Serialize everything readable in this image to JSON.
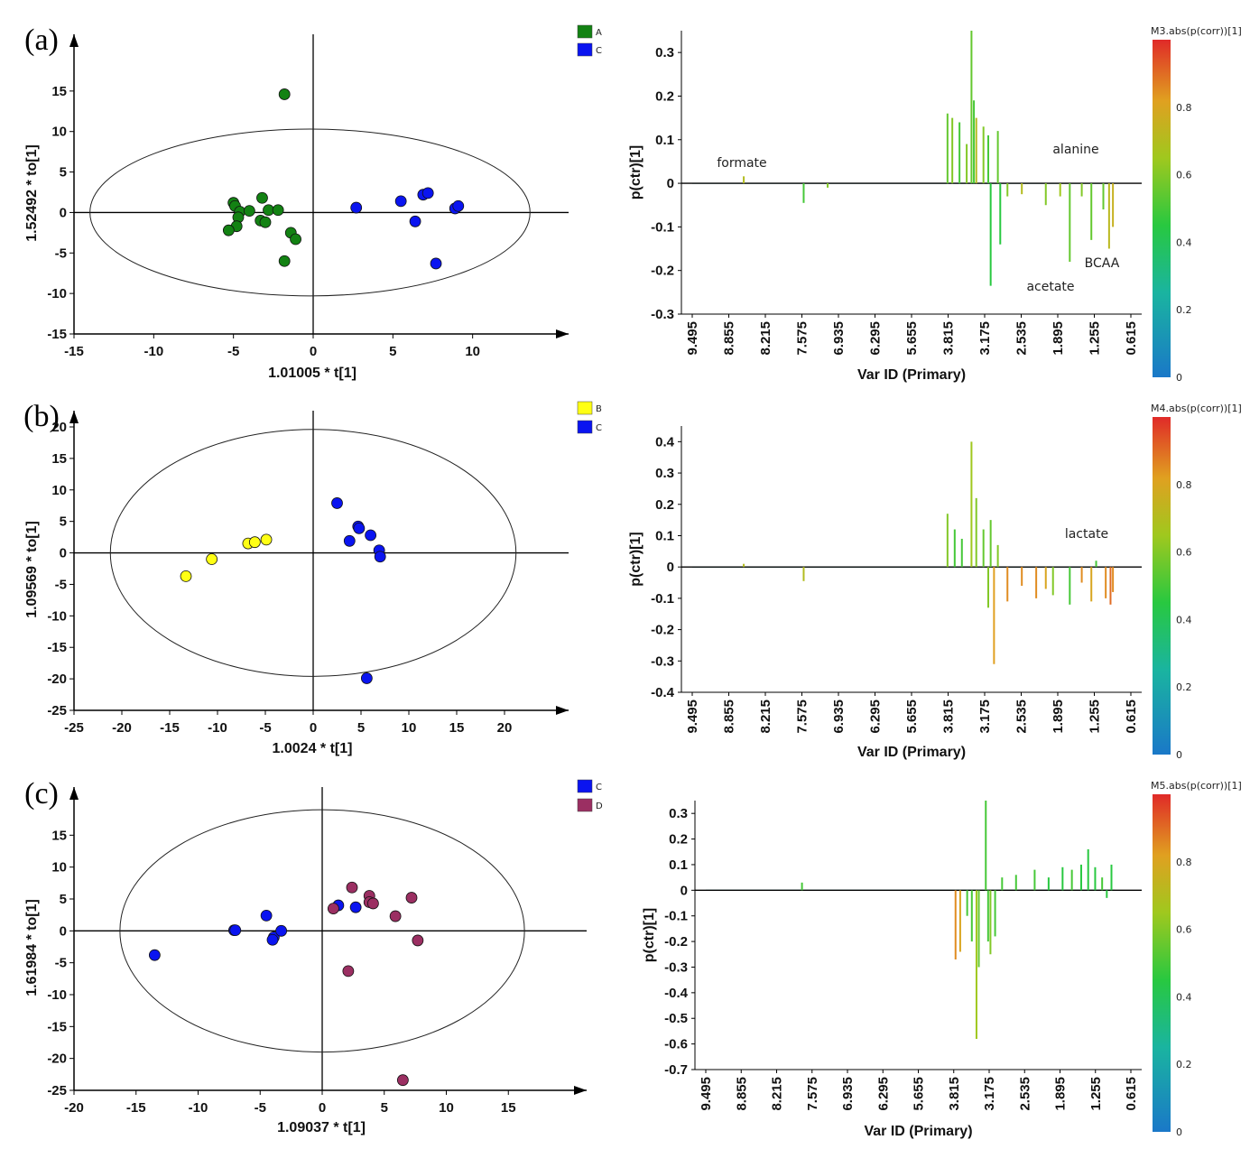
{
  "colors": {
    "A": "#138213",
    "B": "#ffff14",
    "C": "#0a14f0",
    "D": "#9b2f62",
    "axis": "#000000"
  },
  "chart_data": [
    {
      "type": "scatter",
      "panel": "(a)",
      "xlabel": "1.01005 * t[1]",
      "ylabel": "1.52492 * to[1]",
      "xlim": [
        -15,
        15
      ],
      "ylim": [
        -15,
        20
      ],
      "xticks": [
        -15,
        -10,
        -5,
        0,
        5,
        10
      ],
      "yticks": [
        -15,
        -10,
        -5,
        0,
        5,
        10,
        15
      ],
      "ellipse": {
        "cx": -0.2,
        "cy": 0,
        "rx": 13.8,
        "ry": 10.3
      },
      "legend": [
        "A",
        "C"
      ],
      "series": [
        {
          "name": "A",
          "color_key": "A",
          "points": [
            [
              -1.8,
              14.6
            ],
            [
              -5,
              1.2
            ],
            [
              -4.9,
              0.8
            ],
            [
              -4.6,
              0.1
            ],
            [
              -4.7,
              -0.6
            ],
            [
              -4.8,
              -1.7
            ],
            [
              -5.3,
              -2.2
            ],
            [
              -4,
              0.2
            ],
            [
              -3.2,
              1.8
            ],
            [
              -3.3,
              -1
            ],
            [
              -3,
              -1.2
            ],
            [
              -2.8,
              0.3
            ],
            [
              -2.2,
              0.3
            ],
            [
              -1.4,
              -2.5
            ],
            [
              -1.1,
              -3.3
            ],
            [
              -1.8,
              -6
            ]
          ]
        },
        {
          "name": "C",
          "color_key": "C",
          "points": [
            [
              2.7,
              0.6
            ],
            [
              5.5,
              1.4
            ],
            [
              6.4,
              -1.1
            ],
            [
              6.9,
              2.2
            ],
            [
              7.2,
              2.4
            ],
            [
              8.9,
              0.5
            ],
            [
              9.1,
              0.8
            ],
            [
              7.7,
              -6.3
            ]
          ]
        }
      ]
    },
    {
      "type": "line",
      "panel": "(a)",
      "xlabel": "Var ID (Primary)",
      "ylabel": "p(ctr)[1]",
      "xticks": [
        "9.495",
        "8.855",
        "8.215",
        "7.575",
        "6.935",
        "6.295",
        "5.655",
        "3.815",
        "3.175",
        "2.535",
        "1.895",
        "1.255",
        "0.615"
      ],
      "ylim": [
        -0.3,
        0.35
      ],
      "yticks": [
        -0.3,
        -0.2,
        -0.1,
        0,
        0.1,
        0.2,
        0.3
      ],
      "colorbar": {
        "title": "M3.abs(p(corr))[1]",
        "ticks": [
          0,
          0.2,
          0.4,
          0.6,
          0.8
        ]
      },
      "annotations": [
        "formate",
        "alanine",
        "acetate",
        "BCAA"
      ],
      "spikes": [
        [
          8.6,
          0.016,
          0.7
        ],
        [
          7.35,
          -0.045,
          0.5
        ],
        [
          6.85,
          -0.01,
          0.6
        ],
        [
          4.35,
          0.16,
          0.55
        ],
        [
          4.25,
          0.15,
          0.6
        ],
        [
          4.1,
          0.14,
          0.5
        ],
        [
          3.95,
          0.09,
          0.6
        ],
        [
          3.85,
          0.35,
          0.55
        ],
        [
          3.8,
          0.19,
          0.5
        ],
        [
          3.75,
          0.15,
          0.7
        ],
        [
          3.6,
          0.13,
          0.6
        ],
        [
          3.5,
          0.11,
          0.5
        ],
        [
          3.45,
          -0.235,
          0.45
        ],
        [
          3.3,
          0.12,
          0.55
        ],
        [
          3.25,
          -0.14,
          0.45
        ],
        [
          3.1,
          -0.03,
          0.6
        ],
        [
          2.8,
          -0.025,
          0.7
        ],
        [
          2.3,
          -0.05,
          0.6
        ],
        [
          2.0,
          -0.03,
          0.65
        ],
        [
          1.8,
          -0.18,
          0.55
        ],
        [
          1.55,
          -0.03,
          0.6
        ],
        [
          1.35,
          -0.13,
          0.55
        ],
        [
          1.1,
          -0.06,
          0.55
        ],
        [
          0.98,
          -0.15,
          0.72
        ],
        [
          0.9,
          -0.1,
          0.75
        ]
      ]
    },
    {
      "type": "scatter",
      "panel": "(b)",
      "xlabel": "1.0024 * t[1]",
      "ylabel": "1.09569 * to[1]",
      "xlim": [
        -25,
        25
      ],
      "ylim": [
        -25,
        20
      ],
      "xticks": [
        -25,
        -20,
        -15,
        -10,
        -5,
        0,
        5,
        10,
        15,
        20
      ],
      "yticks": [
        -25,
        -20,
        -15,
        -10,
        -5,
        0,
        5,
        10,
        15,
        20
      ],
      "ellipse": {
        "cx": 0,
        "cy": 0,
        "rx": 21.2,
        "ry": 19.6
      },
      "legend": [
        "B",
        "C"
      ],
      "series": [
        {
          "name": "B",
          "color_key": "B",
          "points": [
            [
              -13.3,
              -3.7
            ],
            [
              -10.6,
              -1
            ],
            [
              -6.8,
              1.5
            ],
            [
              -6.1,
              1.7
            ],
            [
              -4.9,
              2.1
            ]
          ]
        },
        {
          "name": "C",
          "color_key": "C",
          "points": [
            [
              2.5,
              7.9
            ],
            [
              4.7,
              4.2
            ],
            [
              4.8,
              3.9
            ],
            [
              3.8,
              1.9
            ],
            [
              6,
              2.8
            ],
            [
              6.9,
              0.4
            ],
            [
              7,
              -0.6
            ],
            [
              5.6,
              -19.9
            ]
          ]
        }
      ]
    },
    {
      "type": "line",
      "panel": "(b)",
      "xlabel": "Var ID (Primary)",
      "ylabel": "p(ctr)[1]",
      "xticks": [
        "9.495",
        "8.855",
        "8.215",
        "7.575",
        "6.935",
        "6.295",
        "5.655",
        "3.815",
        "3.175",
        "2.535",
        "1.895",
        "1.255",
        "0.615"
      ],
      "ylim": [
        -0.4,
        0.45
      ],
      "yticks": [
        -0.4,
        -0.3,
        -0.2,
        -0.1,
        0,
        0.1,
        0.2,
        0.3,
        0.4
      ],
      "colorbar": {
        "title": "M4.abs(p(corr))[1]",
        "ticks": [
          0,
          0.2,
          0.4,
          0.6,
          0.8
        ]
      },
      "annotations": [
        "lactate"
      ],
      "spikes": [
        [
          8.6,
          0.01,
          0.7
        ],
        [
          7.35,
          -0.045,
          0.7
        ],
        [
          4.35,
          0.17,
          0.6
        ],
        [
          4.2,
          0.12,
          0.5
        ],
        [
          4.05,
          0.09,
          0.5
        ],
        [
          3.85,
          0.4,
          0.65
        ],
        [
          3.75,
          0.22,
          0.6
        ],
        [
          3.6,
          0.12,
          0.55
        ],
        [
          3.5,
          -0.13,
          0.6
        ],
        [
          3.45,
          0.15,
          0.55
        ],
        [
          3.38,
          -0.31,
          0.82
        ],
        [
          3.3,
          0.07,
          0.6
        ],
        [
          3.1,
          -0.11,
          0.85
        ],
        [
          2.8,
          -0.06,
          0.85
        ],
        [
          2.5,
          -0.1,
          0.85
        ],
        [
          2.3,
          -0.07,
          0.8
        ],
        [
          2.15,
          -0.09,
          0.6
        ],
        [
          1.8,
          -0.12,
          0.5
        ],
        [
          1.55,
          -0.05,
          0.85
        ],
        [
          1.35,
          -0.11,
          0.8
        ],
        [
          1.25,
          0.02,
          0.5
        ],
        [
          1.05,
          -0.1,
          0.85
        ],
        [
          0.95,
          -0.12,
          0.9
        ],
        [
          0.9,
          -0.08,
          0.85
        ]
      ]
    },
    {
      "type": "scatter",
      "panel": "(c)",
      "xlabel": "1.09037 * t[1]",
      "ylabel": "1.61984 * to[1]",
      "xlim": [
        -20,
        20
      ],
      "ylim": [
        -25,
        20
      ],
      "xticks": [
        -20,
        -15,
        -10,
        -5,
        0,
        5,
        10,
        15
      ],
      "yticks": [
        -25,
        -20,
        -15,
        -10,
        -5,
        0,
        5,
        10,
        15
      ],
      "ellipse": {
        "cx": 0,
        "cy": 0,
        "rx": 16.3,
        "ry": 19
      },
      "legend": [
        "C",
        "D"
      ],
      "series": [
        {
          "name": "C",
          "color_key": "C",
          "points": [
            [
              -13.5,
              -3.8
            ],
            [
              -7.1,
              0.1
            ],
            [
              -7,
              0.1
            ],
            [
              -4.5,
              2.4
            ],
            [
              -3.9,
              -1
            ],
            [
              -4,
              -1.4
            ],
            [
              -3.3,
              0
            ],
            [
              1.3,
              4
            ],
            [
              2.7,
              3.7
            ]
          ]
        },
        {
          "name": "D",
          "color_key": "D",
          "points": [
            [
              0.9,
              3.5
            ],
            [
              2.4,
              6.8
            ],
            [
              3.8,
              5.5
            ],
            [
              3.8,
              4.5
            ],
            [
              4.1,
              4.3
            ],
            [
              5.9,
              2.3
            ],
            [
              7.2,
              5.2
            ],
            [
              7.7,
              -1.5
            ],
            [
              2.1,
              -6.3
            ],
            [
              6.5,
              -23.4
            ]
          ]
        }
      ]
    },
    {
      "type": "line",
      "panel": "(c)",
      "xlabel": "Var ID (Primary)",
      "ylabel": "p(ctr)[1]",
      "xticks": [
        "9.495",
        "8.855",
        "8.215",
        "7.575",
        "6.935",
        "6.295",
        "5.655",
        "3.815",
        "3.175",
        "2.535",
        "1.895",
        "1.255",
        "0.615"
      ],
      "ylim": [
        -0.7,
        0.35
      ],
      "yticks": [
        -0.7,
        -0.6,
        -0.5,
        -0.4,
        -0.3,
        -0.2,
        -0.1,
        0,
        0.1,
        0.2,
        0.3
      ],
      "colorbar": {
        "title": "M5.abs(p(corr))[1]",
        "ticks": [
          0,
          0.2,
          0.4,
          0.6,
          0.8
        ]
      },
      "annotations": [],
      "spikes": [
        [
          7.6,
          0.03,
          0.5
        ],
        [
          4.3,
          -0.27,
          0.85
        ],
        [
          4.2,
          -0.24,
          0.8
        ],
        [
          4.05,
          -0.1,
          0.5
        ],
        [
          3.95,
          -0.2,
          0.5
        ],
        [
          3.85,
          -0.58,
          0.65
        ],
        [
          3.8,
          -0.3,
          0.55
        ],
        [
          3.65,
          0.35,
          0.5
        ],
        [
          3.6,
          -0.2,
          0.5
        ],
        [
          3.55,
          -0.25,
          0.6
        ],
        [
          3.45,
          -0.18,
          0.5
        ],
        [
          3.3,
          0.05,
          0.5
        ],
        [
          3.0,
          0.06,
          0.5
        ],
        [
          2.6,
          0.08,
          0.5
        ],
        [
          2.3,
          0.05,
          0.45
        ],
        [
          2.0,
          0.09,
          0.45
        ],
        [
          1.8,
          0.08,
          0.5
        ],
        [
          1.6,
          0.1,
          0.45
        ],
        [
          1.45,
          0.16,
          0.45
        ],
        [
          1.3,
          0.09,
          0.45
        ],
        [
          1.15,
          0.05,
          0.5
        ],
        [
          1.05,
          -0.03,
          0.45
        ],
        [
          0.95,
          0.1,
          0.45
        ]
      ]
    }
  ],
  "panel_labels": [
    "(a)",
    "(b)",
    "(c)"
  ],
  "annotation_text": {
    "formate": "formate",
    "alanine": "alanine",
    "acetate": "acetate",
    "BCAA": "BCAA",
    "lactate": "lactate"
  }
}
